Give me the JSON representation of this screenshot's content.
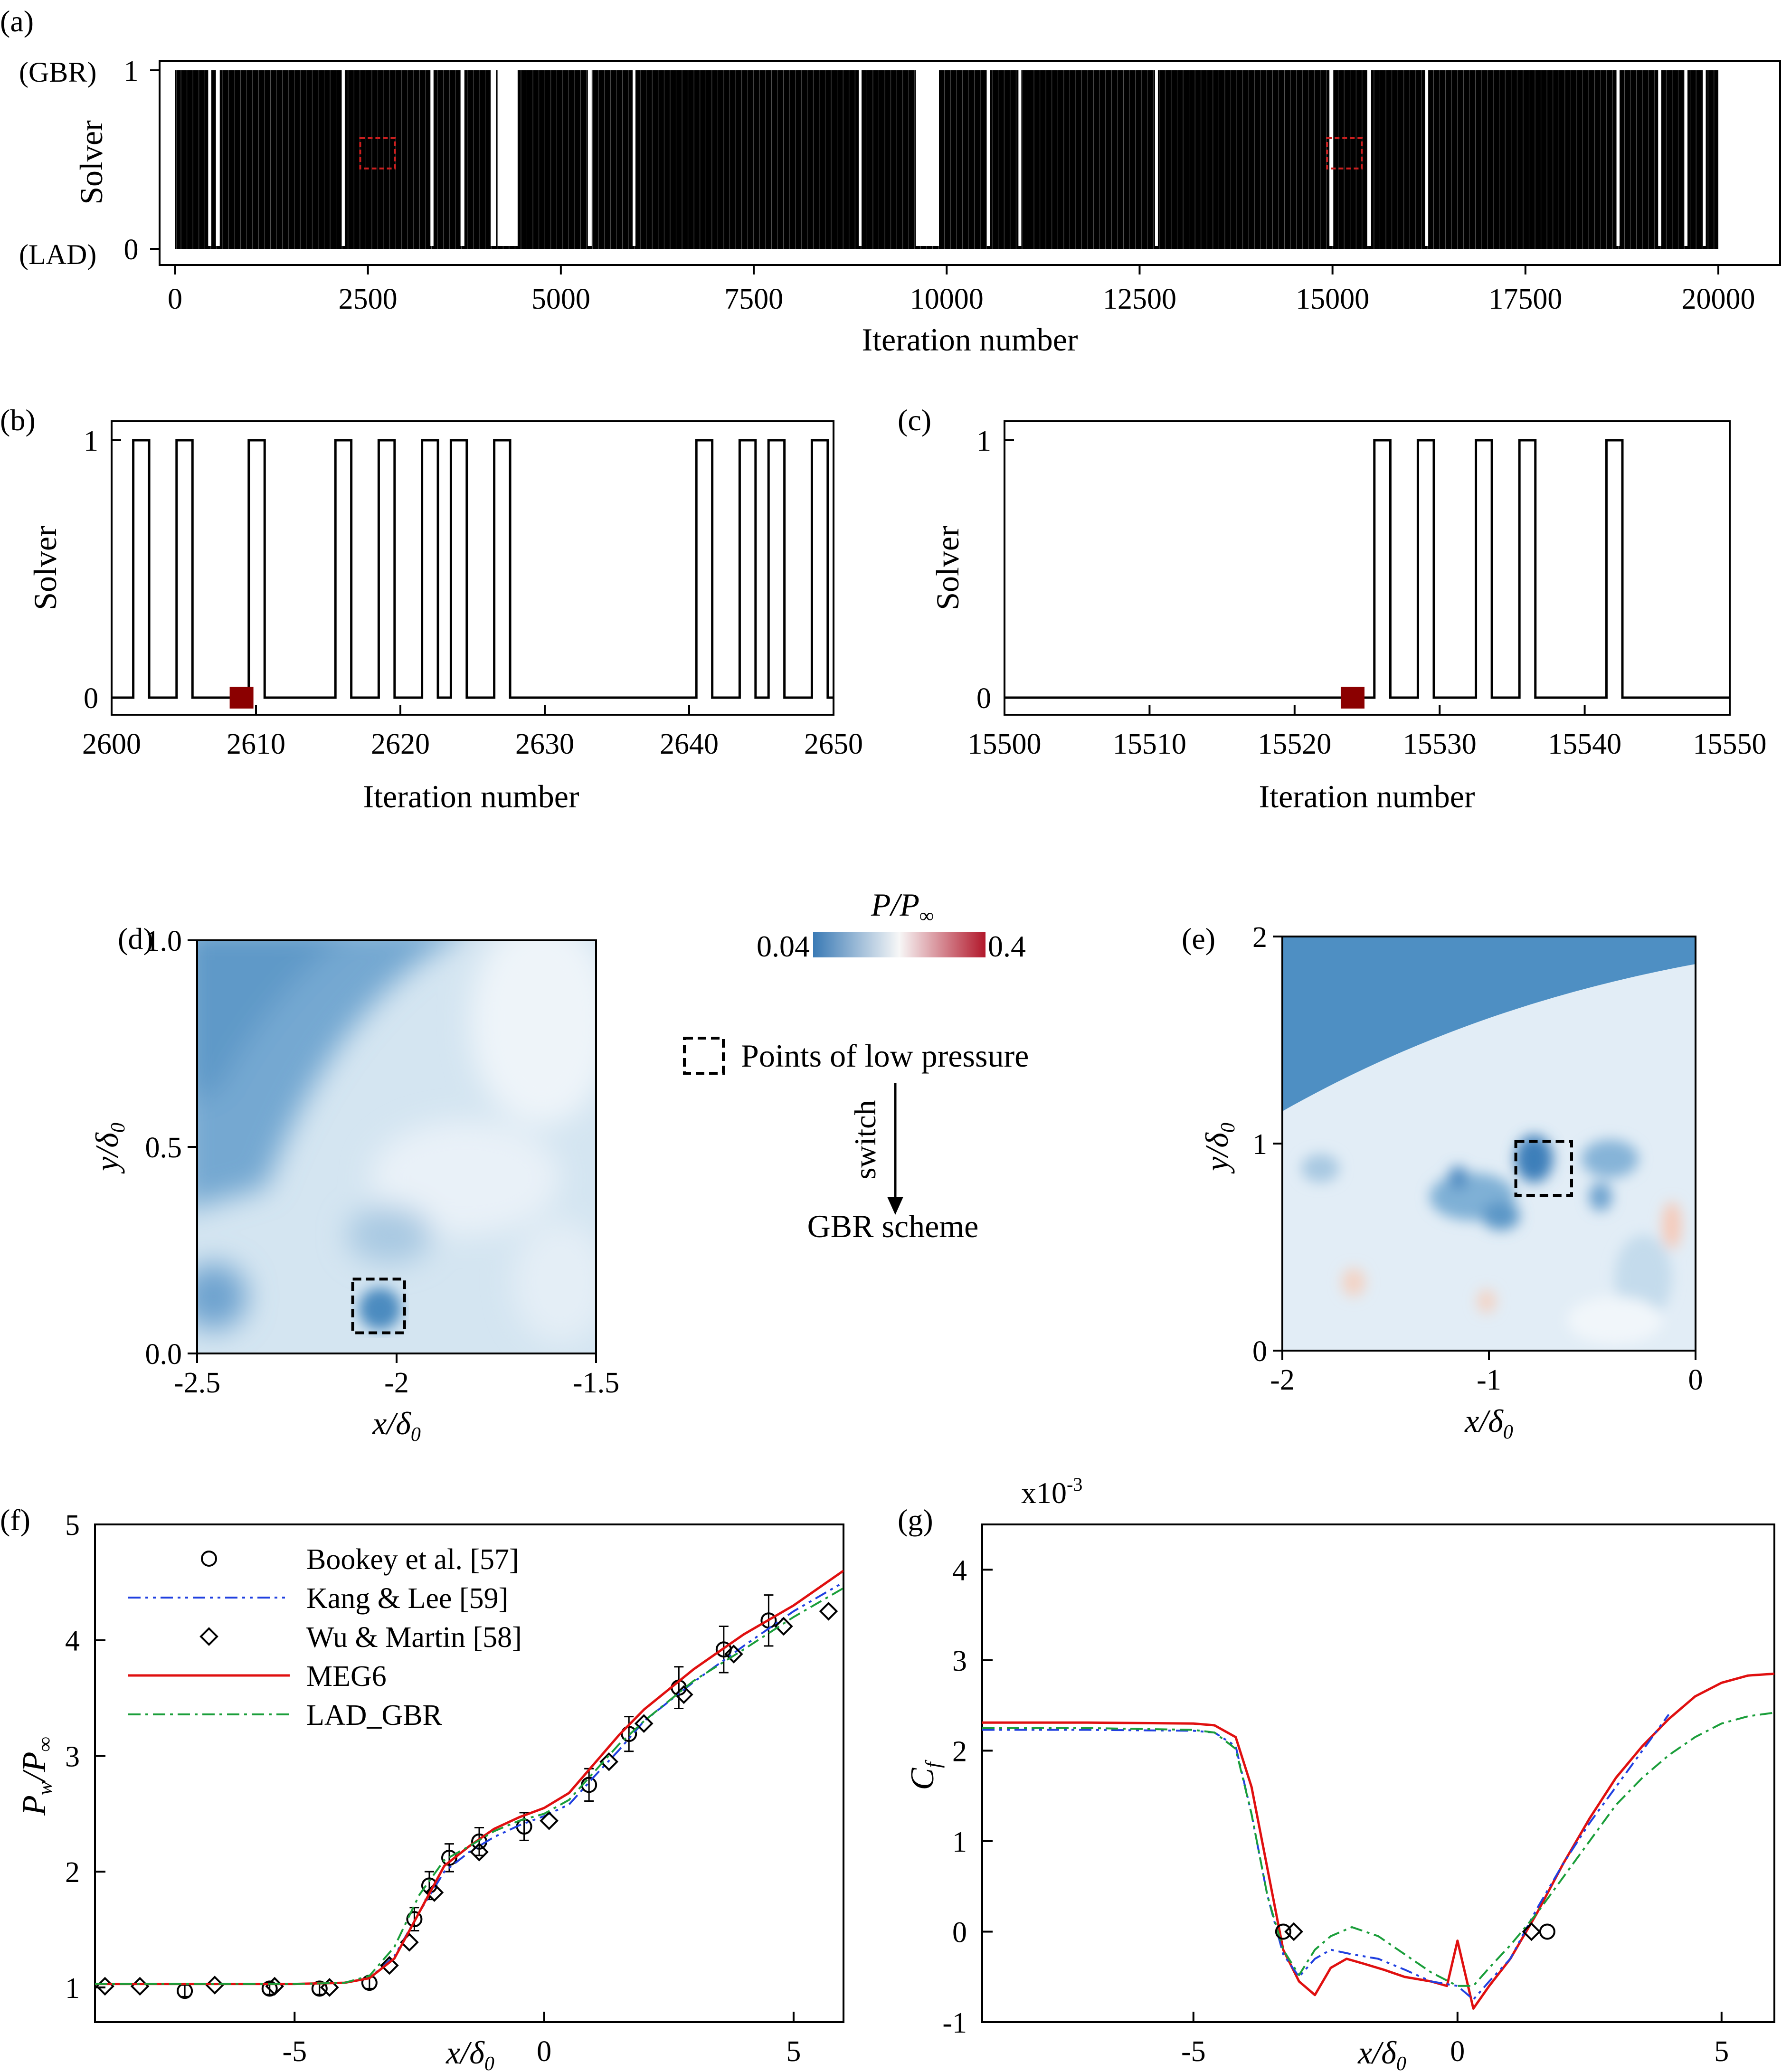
{
  "panel_labels": [
    "(a)",
    "(b)",
    "(c)",
    "(d)",
    "(e)",
    "(f)",
    "(g)"
  ],
  "colors": {
    "solver_fill": "#000000",
    "highlight_box": "#cc1f1f",
    "switch_marker": "#8b0000",
    "map_low": "#3a7ab5",
    "map_mid": "#f7f7f7",
    "map_high": "#b2182b",
    "meg6": "#e01010",
    "kang_lee": "#2040e0",
    "lad_gbr": "#1a9e3a",
    "symbols": "#000000"
  },
  "legend_map": {
    "points_label": "Points of  low pressure",
    "switch_label": "switch",
    "scheme_label": "GBR scheme"
  },
  "chart_data": [
    {
      "id": "a",
      "type": "line",
      "title": "",
      "xlabel": "Iteration number",
      "ylabel": "Solver",
      "xlim": [
        0,
        20000
      ],
      "ylim": [
        0,
        1
      ],
      "xticks": [
        "0",
        "2500",
        "5000",
        "7500",
        "10000",
        "12500",
        "15000",
        "17500",
        "20000"
      ],
      "yticks": [
        "1",
        "0"
      ],
      "ytick_prefix": [
        "(GBR)",
        "(LAD)"
      ],
      "description_note": "",
      "lad_intervals": [
        [
          0,
          0
        ],
        [
          430,
          470
        ],
        [
          530,
          580
        ],
        [
          2160,
          2200
        ],
        [
          3310,
          3350
        ],
        [
          3700,
          3750
        ],
        [
          4090,
          4160
        ],
        [
          4180,
          4440
        ],
        [
          5350,
          5400
        ],
        [
          5930,
          5960
        ],
        [
          8860,
          8890
        ],
        [
          9600,
          9900
        ],
        [
          10520,
          10560
        ],
        [
          10930,
          10960
        ],
        [
          12700,
          12730
        ],
        [
          14960,
          15010
        ],
        [
          15450,
          15500
        ],
        [
          16200,
          16240
        ],
        [
          18680,
          18720
        ],
        [
          19220,
          19260
        ],
        [
          19560,
          19600
        ],
        [
          19800,
          19830
        ]
      ],
      "gbr_duty": 0.65,
      "highlights": [
        [
          2400,
          2850
        ],
        [
          14930,
          15380
        ]
      ]
    },
    {
      "id": "b",
      "type": "line",
      "xlabel": "Iteration number",
      "ylabel": "Solver",
      "xlim": [
        2600,
        2650
      ],
      "ylim": [
        0,
        1
      ],
      "xticks": [
        "2600",
        "2610",
        "2620",
        "2630",
        "2640",
        "2650"
      ],
      "yticks": [
        "1",
        "0"
      ],
      "high_intervals": [
        [
          2601.5,
          2602.6
        ],
        [
          2604.5,
          2605.6
        ],
        [
          2609.5,
          2610.6
        ],
        [
          2615.5,
          2616.6
        ],
        [
          2618.5,
          2619.6
        ],
        [
          2621.5,
          2622.6
        ],
        [
          2623.5,
          2624.6
        ],
        [
          2626.5,
          2627.6
        ],
        [
          2640.5,
          2641.6
        ],
        [
          2643.5,
          2644.6
        ],
        [
          2645.5,
          2646.6
        ],
        [
          2648.5,
          2649.6
        ]
      ],
      "marker": {
        "x": 2609,
        "y": 0
      }
    },
    {
      "id": "c",
      "type": "line",
      "xlabel": "Iteration number",
      "ylabel": "Solver",
      "xlim": [
        15500,
        15550
      ],
      "ylim": [
        0,
        1
      ],
      "xticks": [
        "15500",
        "15510",
        "15520",
        "15530",
        "15540",
        "15550"
      ],
      "yticks": [
        "1",
        "0"
      ],
      "high_intervals": [
        [
          15525.5,
          15526.6
        ],
        [
          15528.5,
          15529.6
        ],
        [
          15532.5,
          15533.6
        ],
        [
          15535.5,
          15536.6
        ],
        [
          15541.5,
          15542.6
        ]
      ],
      "marker": {
        "x": 15524,
        "y": 0
      }
    },
    {
      "id": "d",
      "type": "heatmap",
      "xlabel": "x/δ",
      "xlabel_sub": "0",
      "ylabel": "y/δ",
      "ylabel_sub": "0",
      "xlim": [
        -2.5,
        -1.5
      ],
      "ylim": [
        0,
        1
      ],
      "xticks": [
        "-2.5",
        "-2",
        "-1.5"
      ],
      "yticks": [
        "0.0",
        "0.5",
        "1.0"
      ],
      "low_pressure_box": {
        "x": [
          -2.11,
          -1.98
        ],
        "y": [
          0.05,
          0.18
        ]
      }
    },
    {
      "id": "e",
      "type": "heatmap",
      "xlabel": "x/δ",
      "xlabel_sub": "0",
      "ylabel": "y/δ",
      "ylabel_sub": "0",
      "xlim": [
        -2,
        0
      ],
      "ylim": [
        0,
        2
      ],
      "xticks": [
        "-2",
        "-1",
        "0"
      ],
      "yticks": [
        "0",
        "1",
        "2"
      ],
      "low_pressure_box": {
        "x": [
          -0.87,
          -0.6
        ],
        "y": [
          0.75,
          1.01
        ]
      }
    },
    {
      "id": "colorbar",
      "type": "heatmap",
      "label": "P/P",
      "label_sub": "∞",
      "range": [
        0.04,
        0.4
      ],
      "ticks": [
        "0.04",
        "0.4"
      ]
    },
    {
      "id": "f",
      "type": "line",
      "xlabel": "x/δ",
      "xlabel_sub": "0",
      "ylabel": "P",
      "ylabel_parts": [
        "P",
        "w",
        "/P",
        "∞"
      ],
      "xlim": [
        -9,
        6
      ],
      "ylim": [
        0.7,
        5
      ],
      "xticks": [
        "-5",
        "0",
        "5"
      ],
      "yticks": [
        "1",
        "2",
        "3",
        "4",
        "5"
      ],
      "legend_position": "top-left",
      "series": [
        {
          "name": "Bookey et al. [57]",
          "style": "circle",
          "x": [
            -7.2,
            -5.5,
            -4.5,
            -3.5,
            -2.6,
            -2.3,
            -1.9,
            -1.3,
            -0.4,
            0.9,
            1.7,
            2.7,
            3.6,
            4.5
          ],
          "y": [
            0.97,
            0.99,
            0.99,
            1.04,
            1.59,
            1.88,
            2.12,
            2.26,
            2.39,
            2.75,
            3.19,
            3.59,
            3.92,
            4.17
          ],
          "err": [
            0.05,
            0.05,
            0.05,
            0.05,
            0.1,
            0.12,
            0.12,
            0.12,
            0.12,
            0.14,
            0.15,
            0.18,
            0.2,
            0.22
          ]
        },
        {
          "name": "Kang & Lee [59]",
          "style": "dashdotdot",
          "x": [
            -9,
            -5,
            -4,
            -3.5,
            -3,
            -2.5,
            -2,
            -1.5,
            -1,
            -0.5,
            0,
            0.5,
            1,
            1.5,
            2,
            3,
            4,
            5,
            6
          ],
          "y": [
            1.03,
            1.03,
            1.04,
            1.08,
            1.27,
            1.65,
            2.0,
            2.17,
            2.3,
            2.4,
            2.48,
            2.58,
            2.82,
            3.05,
            3.3,
            3.64,
            3.95,
            4.25,
            4.5
          ]
        },
        {
          "name": "Wu & Martin [58]",
          "style": "diamond",
          "x": [
            -8.8,
            -8.1,
            -6.6,
            -5.4,
            -4.3,
            -3.1,
            -2.7,
            -2.2,
            -1.3,
            0.1,
            1.3,
            2.0,
            2.8,
            3.8,
            4.8,
            5.7
          ],
          "y": [
            1.01,
            1.01,
            1.02,
            1.01,
            1.0,
            1.19,
            1.39,
            1.82,
            2.17,
            2.44,
            2.95,
            3.28,
            3.53,
            3.88,
            4.12,
            4.25
          ]
        },
        {
          "name": "MEG6",
          "style": "solid",
          "x": [
            -9,
            -5,
            -4,
            -3.5,
            -3,
            -2.5,
            -2,
            -1.5,
            -1,
            -0.5,
            0,
            0.5,
            1,
            1.5,
            2,
            3,
            4,
            5,
            6
          ],
          "y": [
            1.03,
            1.03,
            1.04,
            1.08,
            1.25,
            1.65,
            2.05,
            2.22,
            2.37,
            2.47,
            2.55,
            2.68,
            2.93,
            3.18,
            3.4,
            3.75,
            4.05,
            4.3,
            4.6
          ]
        },
        {
          "name": "LAD_GBR",
          "style": "dashdot",
          "x": [
            -9,
            -5,
            -4,
            -3.5,
            -3,
            -2.5,
            -2,
            -1.5,
            -1,
            -0.5,
            0,
            0.5,
            1,
            1.5,
            2,
            3,
            4,
            5,
            6
          ],
          "y": [
            1.03,
            1.03,
            1.04,
            1.1,
            1.35,
            1.8,
            2.1,
            2.22,
            2.35,
            2.44,
            2.5,
            2.62,
            2.86,
            3.1,
            3.3,
            3.65,
            3.92,
            4.2,
            4.45
          ]
        }
      ]
    },
    {
      "id": "g",
      "type": "line",
      "xlabel": "x/δ",
      "xlabel_sub": "0",
      "ylabel": "C",
      "ylabel_sub": "f",
      "scale_label": "x10",
      "scale_exp": "-3",
      "xlim": [
        -9,
        6
      ],
      "ylim": [
        -1,
        4.5
      ],
      "xticks": [
        "-5",
        "0",
        "5"
      ],
      "yticks": [
        "-1",
        "0",
        "1",
        "2",
        "3",
        "4"
      ],
      "series": [
        {
          "name": "MEG6",
          "style": "solid",
          "x": [
            -9,
            -7,
            -5,
            -4.6,
            -4.2,
            -3.9,
            -3.6,
            -3.3,
            -3.0,
            -2.7,
            -2.4,
            -2.1,
            -1.8,
            -1.4,
            -1.0,
            -0.5,
            -0.2,
            0,
            0.3,
            0.6,
            1.0,
            1.5,
            2.0,
            2.5,
            3.0,
            3.5,
            4.0,
            4.5,
            5.0,
            5.5,
            6.0
          ],
          "y": [
            2.31,
            2.31,
            2.3,
            2.28,
            2.15,
            1.6,
            0.7,
            -0.2,
            -0.55,
            -0.7,
            -0.4,
            -0.3,
            -0.35,
            -0.42,
            -0.5,
            -0.55,
            -0.6,
            -0.1,
            -0.85,
            -0.6,
            -0.3,
            0.2,
            0.75,
            1.25,
            1.7,
            2.05,
            2.35,
            2.6,
            2.75,
            2.83,
            2.85
          ]
        },
        {
          "name": "Kang & Lee [59]",
          "style": "dashdotdot",
          "x": [
            -9,
            -7,
            -5,
            -4.6,
            -4.2,
            -3.9,
            -3.6,
            -3.3,
            -3.0,
            -2.7,
            -2.4,
            -2.0,
            -1.5,
            -1.0,
            -0.5,
            0,
            0.3,
            0.6,
            1.0,
            1.5,
            2.0,
            2.5,
            3.0,
            3.5,
            4.0
          ],
          "y": [
            2.23,
            2.23,
            2.22,
            2.2,
            2.05,
            1.3,
            0.4,
            -0.25,
            -0.5,
            -0.3,
            -0.2,
            -0.25,
            -0.3,
            -0.42,
            -0.55,
            -0.6,
            -0.75,
            -0.55,
            -0.3,
            0.25,
            0.75,
            1.2,
            1.6,
            2.0,
            2.4
          ]
        },
        {
          "name": "LAD_GBR",
          "style": "dashdot",
          "x": [
            -9,
            -7,
            -5,
            -4.6,
            -4.2,
            -3.9,
            -3.6,
            -3.3,
            -3.0,
            -2.7,
            -2.4,
            -2.0,
            -1.5,
            -1.0,
            -0.5,
            0,
            0.3,
            0.6,
            1.0,
            1.5,
            2.0,
            2.5,
            3.0,
            3.5,
            4.0,
            4.5,
            5.0,
            5.5,
            6.0
          ],
          "y": [
            2.25,
            2.25,
            2.23,
            2.2,
            2.02,
            1.3,
            0.4,
            -0.2,
            -0.48,
            -0.2,
            -0.05,
            0.05,
            -0.05,
            -0.25,
            -0.45,
            -0.6,
            -0.6,
            -0.4,
            -0.15,
            0.2,
            0.6,
            1.0,
            1.4,
            1.7,
            1.95,
            2.15,
            2.3,
            2.38,
            2.42
          ]
        },
        {
          "name": "Bookey et al. [57]",
          "style": "circle",
          "x": [
            -3.3,
            1.7
          ],
          "y": [
            0.0,
            0.0
          ]
        },
        {
          "name": "Wu & Martin [58]",
          "style": "diamond",
          "x": [
            -3.1,
            1.4
          ],
          "y": [
            0.0,
            0.0
          ]
        }
      ]
    }
  ]
}
